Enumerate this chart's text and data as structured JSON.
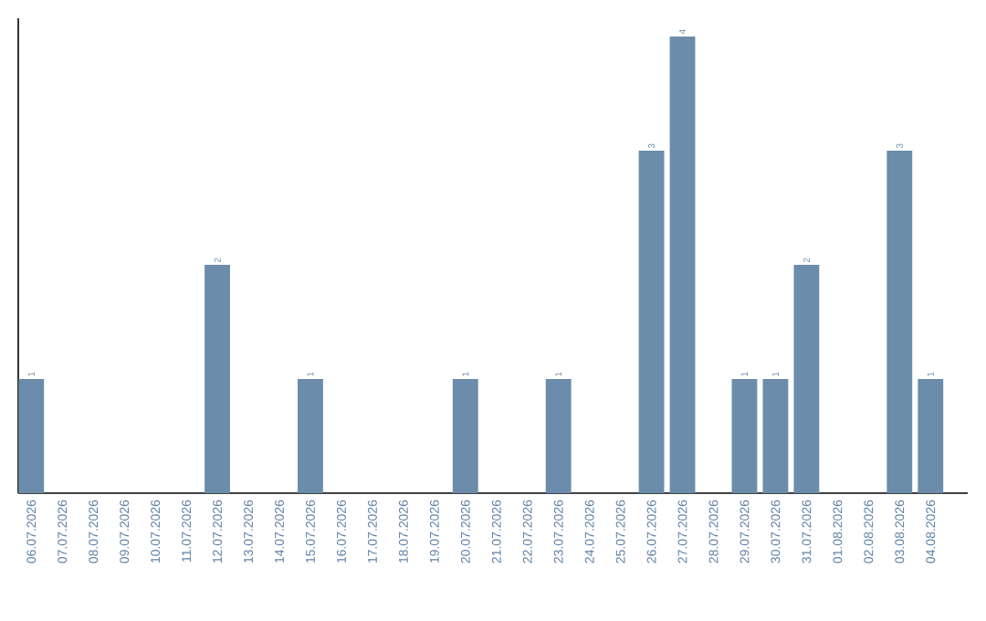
{
  "chart_data": {
    "type": "bar",
    "color": "#6b8cab",
    "categories": [
      "06.07.2026",
      "07.07.2026",
      "08.07.2026",
      "09.07.2026",
      "10.07.2026",
      "11.07.2026",
      "12.07.2026",
      "13.07.2026",
      "14.07.2026",
      "15.07.2026",
      "16.07.2026",
      "17.07.2026",
      "18.07.2026",
      "19.07.2026",
      "20.07.2026",
      "21.07.2026",
      "22.07.2026",
      "23.07.2026",
      "24.07.2026",
      "25.07.2026",
      "26.07.2026",
      "27.07.2026",
      "28.07.2026",
      "29.07.2026",
      "30.07.2026",
      "31.07.2026",
      "01.08.2026",
      "02.08.2026",
      "03.08.2026",
      "04.08.2026"
    ],
    "values": [
      1,
      0,
      0,
      0,
      0,
      0,
      2,
      0,
      0,
      1,
      0,
      0,
      0,
      0,
      1,
      0,
      0,
      1,
      0,
      0,
      3,
      4,
      0,
      1,
      1,
      2,
      0,
      0,
      3,
      1
    ],
    "value_labels": [
      "1",
      null,
      null,
      null,
      null,
      null,
      "2",
      null,
      null,
      "1",
      null,
      null,
      null,
      null,
      "1",
      null,
      null,
      "1",
      null,
      null,
      "3",
      "4",
      null,
      "1",
      "1",
      "2",
      null,
      null,
      "3",
      "1"
    ]
  }
}
